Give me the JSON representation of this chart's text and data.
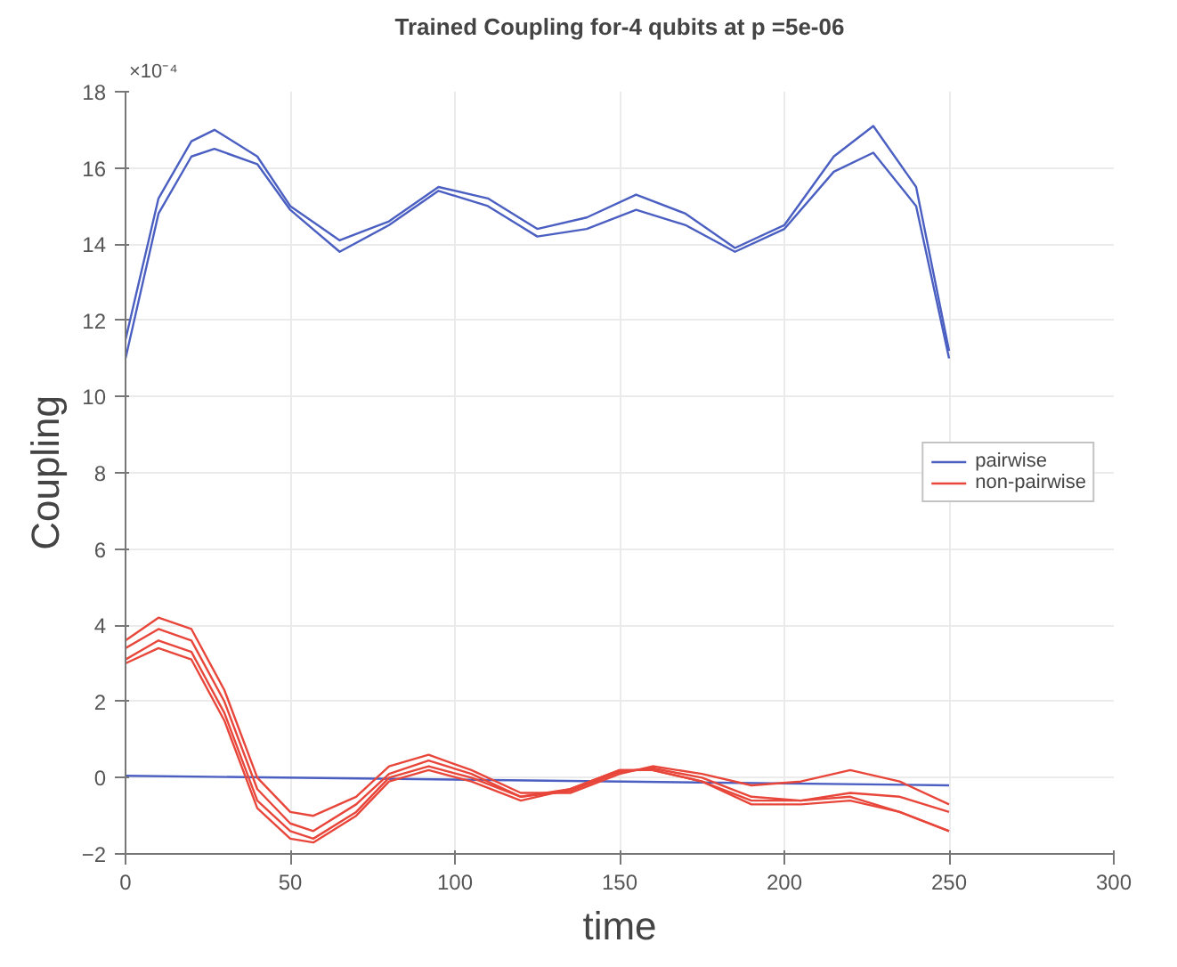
{
  "chart_data": {
    "type": "line",
    "title": "Trained Coupling for-4 qubits at p =5e-06",
    "xlabel": "time",
    "ylabel": "Coupling",
    "annotations": [
      "×10⁻⁴"
    ],
    "xlim": [
      0,
      300
    ],
    "xticks": [
      0,
      50,
      100,
      150,
      200,
      250,
      300
    ],
    "ylim": [
      -2,
      18
    ],
    "yticks": [
      -2,
      0,
      2,
      4,
      6,
      8,
      10,
      12,
      14,
      16,
      18
    ],
    "grid": true,
    "legend": "right",
    "line_style": "solid",
    "marker": "none",
    "series": [
      {
        "name": "pairwise",
        "color": "#4a5fc1",
        "x": [
          0,
          10,
          20,
          27,
          40,
          50,
          65,
          80,
          95,
          110,
          125,
          140,
          155,
          170,
          185,
          200,
          215,
          227,
          240,
          250
        ],
        "values": [
          11.5,
          15.2,
          16.7,
          17.0,
          16.3,
          15.0,
          14.1,
          14.6,
          15.5,
          15.2,
          14.4,
          14.7,
          15.3,
          14.8,
          13.9,
          14.5,
          16.3,
          17.1,
          15.5,
          11.2
        ]
      },
      {
        "color": "#4a5fc1",
        "x": [
          0,
          10,
          20,
          27,
          40,
          50,
          65,
          80,
          95,
          110,
          125,
          140,
          155,
          170,
          185,
          200,
          215,
          227,
          240,
          250
        ],
        "values": [
          11.0,
          14.8,
          16.3,
          16.5,
          16.1,
          14.9,
          13.8,
          14.5,
          15.4,
          15.0,
          14.2,
          14.4,
          14.9,
          14.5,
          13.8,
          14.4,
          15.9,
          16.4,
          15.0,
          11.0
        ]
      },
      {
        "color": "#4a5fc1",
        "x": [
          0,
          250
        ],
        "values": [
          0.05,
          -0.2
        ]
      },
      {
        "name": "non-pairwise",
        "color": "#e8463a",
        "x": [
          0,
          10,
          20,
          30,
          40,
          50,
          57,
          70,
          80,
          92,
          105,
          120,
          135,
          150,
          160,
          175,
          190,
          205,
          220,
          235,
          250
        ],
        "values": [
          3.6,
          4.2,
          3.9,
          2.3,
          0.0,
          -0.9,
          -1.0,
          -0.5,
          0.3,
          0.6,
          0.2,
          -0.4,
          -0.4,
          0.1,
          0.3,
          0.1,
          -0.2,
          -0.1,
          0.2,
          -0.1,
          -0.7
        ]
      },
      {
        "color": "#e8463a",
        "x": [
          0,
          10,
          20,
          30,
          40,
          50,
          57,
          70,
          80,
          92,
          105,
          120,
          135,
          150,
          160,
          175,
          190,
          205,
          220,
          235,
          250
        ],
        "values": [
          3.4,
          3.9,
          3.6,
          2.0,
          -0.3,
          -1.2,
          -1.4,
          -0.7,
          0.1,
          0.45,
          0.1,
          -0.5,
          -0.35,
          0.15,
          0.25,
          0.0,
          -0.5,
          -0.6,
          -0.4,
          -0.5,
          -0.9
        ]
      },
      {
        "color": "#e8463a",
        "x": [
          0,
          10,
          20,
          30,
          40,
          50,
          57,
          70,
          80,
          92,
          105,
          120,
          135,
          150,
          160,
          175,
          190,
          205,
          220,
          235,
          250
        ],
        "values": [
          3.1,
          3.6,
          3.3,
          1.7,
          -0.6,
          -1.4,
          -1.6,
          -0.9,
          0.0,
          0.3,
          0.0,
          -0.5,
          -0.3,
          0.2,
          0.2,
          -0.1,
          -0.6,
          -0.6,
          -0.5,
          -0.9,
          -1.4
        ]
      },
      {
        "color": "#e8463a",
        "x": [
          0,
          10,
          20,
          30,
          40,
          50,
          57,
          70,
          80,
          92,
          105,
          120,
          135,
          150,
          160,
          175,
          190,
          205,
          220,
          235,
          250
        ],
        "values": [
          3.0,
          3.4,
          3.1,
          1.5,
          -0.8,
          -1.6,
          -1.7,
          -1.0,
          -0.1,
          0.2,
          -0.1,
          -0.6,
          -0.3,
          0.2,
          0.2,
          -0.1,
          -0.7,
          -0.7,
          -0.6,
          -0.9,
          -1.4
        ]
      }
    ]
  }
}
